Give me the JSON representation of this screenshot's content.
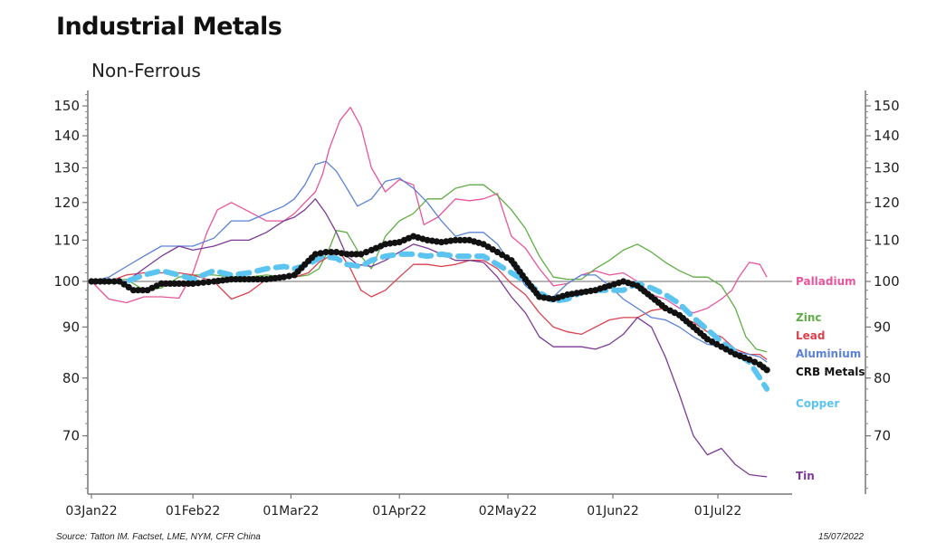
{
  "header": {
    "title": "Industrial Metals",
    "subtitle": "Non-Ferrous"
  },
  "footer": {
    "source": "Source: Tatton IM. Factset, LME, NYM, CFR China",
    "date": "15/07/2022"
  },
  "chart_data": {
    "type": "line",
    "title": "Industrial Metals",
    "subtitle": "Non-Ferrous",
    "xlabel": "",
    "ylabel": "",
    "y_scale": "log",
    "ylim": [
      61,
      156
    ],
    "reference_line": 100,
    "y_ticks": [
      70,
      80,
      90,
      100,
      110,
      120,
      130,
      140,
      150
    ],
    "y_tick_labels": [
      "70",
      "80",
      "90",
      "100",
      "110",
      "120",
      "130",
      "140",
      "150"
    ],
    "x_unit": "days since 03Jan22",
    "xlim": [
      0,
      203
    ],
    "x_ticks": [
      0,
      29,
      57,
      88,
      119,
      149,
      179
    ],
    "x_tick_labels": [
      "03Jan22",
      "01Feb22",
      "01Mar22",
      "01Apr22",
      "02May22",
      "01Jun22",
      "01Jul22"
    ],
    "legend_placement": "right (end labels)",
    "series": [
      {
        "name": "Palladium",
        "color": "#e8559c",
        "style": "solid",
        "x": [
          0,
          5,
          10,
          15,
          20,
          25,
          29,
          33,
          36,
          40,
          45,
          50,
          55,
          58,
          61,
          64,
          66,
          68,
          71,
          74,
          77,
          80,
          84,
          88,
          92,
          95,
          99,
          104,
          108,
          112,
          116,
          120,
          124,
          128,
          132,
          136,
          140,
          144,
          148,
          152,
          156,
          160,
          164,
          168,
          172,
          176,
          180,
          183,
          185,
          188,
          191,
          193
        ],
        "y": [
          100,
          96,
          95.2,
          96.5,
          96.5,
          96.2,
          102,
          112,
          118,
          120,
          117.5,
          115,
          115,
          117,
          120,
          123,
          128,
          136,
          145,
          149.5,
          143,
          130,
          123,
          126.5,
          125,
          114,
          116,
          121,
          120.5,
          121,
          122.5,
          111,
          108,
          103,
          99,
          99.5,
          101.5,
          102.5,
          101.5,
          102,
          100,
          97,
          96,
          94,
          93,
          94,
          96,
          98,
          101,
          104.5,
          104,
          101
        ]
      },
      {
        "name": "Zinc",
        "color": "#5fae44",
        "style": "solid",
        "x": [
          0,
          5,
          10,
          15,
          20,
          25,
          29,
          35,
          40,
          45,
          50,
          55,
          58,
          62,
          65,
          68,
          70,
          73,
          77,
          80,
          84,
          88,
          92,
          96,
          100,
          104,
          108,
          112,
          116,
          120,
          124,
          128,
          132,
          136,
          140,
          144,
          148,
          152,
          156,
          160,
          164,
          168,
          172,
          176,
          180,
          184,
          187,
          190,
          193
        ],
        "y": [
          100,
          100,
          100.5,
          98,
          98.5,
          101,
          101.5,
          101.5,
          101,
          101,
          101.5,
          101,
          101,
          101.5,
          103,
          108,
          112.5,
          112,
          106,
          103,
          111,
          115,
          117,
          121,
          121,
          124,
          125,
          125,
          122,
          118,
          113,
          106,
          101,
          100.5,
          100.5,
          103,
          105,
          107.5,
          109,
          107,
          104.5,
          102.5,
          101,
          101,
          99,
          94,
          88,
          85.5,
          85
        ]
      },
      {
        "name": "Lead",
        "color": "#d9414d",
        "style": "solid",
        "x": [
          0,
          5,
          10,
          15,
          20,
          25,
          29,
          35,
          40,
          45,
          50,
          55,
          58,
          62,
          65,
          68,
          71,
          74,
          77,
          80,
          84,
          88,
          92,
          96,
          100,
          104,
          108,
          112,
          116,
          120,
          124,
          128,
          132,
          136,
          140,
          144,
          148,
          152,
          156,
          160,
          164,
          168,
          172,
          176,
          180,
          184,
          188,
          191,
          193
        ],
        "y": [
          100,
          100,
          101.5,
          102,
          102,
          102,
          101.5,
          100,
          96,
          97.5,
          100.5,
          101,
          101,
          102,
          104.5,
          106,
          107,
          103,
          98,
          96.5,
          98,
          101,
          104,
          104,
          103.5,
          104,
          105,
          105,
          103,
          99.5,
          97,
          93,
          90,
          89,
          88.5,
          90,
          91.5,
          92,
          92,
          93.5,
          94,
          92,
          91,
          89,
          88,
          85.5,
          84.5,
          84.5,
          83.5
        ]
      },
      {
        "name": "Aluminium",
        "color": "#5b82d6",
        "style": "solid",
        "x": [
          0,
          5,
          10,
          15,
          20,
          25,
          29,
          35,
          40,
          45,
          50,
          55,
          58,
          61,
          64,
          67,
          70,
          73,
          76,
          80,
          84,
          88,
          92,
          96,
          100,
          104,
          108,
          112,
          116,
          120,
          124,
          128,
          132,
          136,
          140,
          144,
          148,
          152,
          156,
          160,
          164,
          168,
          172,
          176,
          180,
          184,
          188,
          191,
          193
        ],
        "y": [
          100,
          101,
          103.5,
          106,
          108.5,
          108.5,
          108.5,
          110.5,
          115,
          115,
          117,
          119,
          121,
          125,
          131,
          132,
          129,
          124,
          119,
          121,
          126,
          127,
          124,
          120,
          115,
          111,
          112,
          112,
          109,
          104,
          99,
          96.5,
          96.5,
          99.5,
          101.5,
          101.5,
          99,
          96,
          94,
          92,
          91.5,
          90,
          88,
          86.5,
          86,
          85,
          84.5,
          84,
          83
        ]
      },
      {
        "name": "Tin",
        "color": "#7b3a96",
        "style": "solid",
        "x": [
          0,
          5,
          10,
          15,
          20,
          25,
          29,
          35,
          40,
          45,
          50,
          55,
          58,
          61,
          64,
          67,
          70,
          73,
          76,
          80,
          84,
          88,
          92,
          96,
          100,
          104,
          108,
          112,
          116,
          120,
          124,
          128,
          132,
          136,
          140,
          144,
          148,
          152,
          156,
          160,
          164,
          168,
          172,
          176,
          180,
          184,
          188,
          191,
          193
        ],
        "y": [
          100,
          100,
          100,
          103,
          106,
          108.5,
          107.5,
          108.5,
          110,
          110,
          112,
          115,
          116,
          118,
          121,
          117,
          112,
          106,
          104,
          103.5,
          105,
          107,
          109,
          108,
          106.5,
          105,
          105,
          104.5,
          101,
          96.5,
          93,
          88,
          86,
          86,
          86,
          85.5,
          86.5,
          88.5,
          92,
          90,
          84,
          77,
          70,
          67,
          68,
          65.5,
          64,
          63.8,
          63.7
        ]
      },
      {
        "name": "CRB Metals",
        "color": "#111111",
        "style": "dots",
        "x": [
          0,
          5,
          8,
          12,
          16,
          20,
          25,
          29,
          35,
          40,
          45,
          50,
          55,
          58,
          61,
          64,
          67,
          70,
          73,
          77,
          80,
          84,
          88,
          92,
          96,
          100,
          104,
          108,
          112,
          116,
          120,
          124,
          128,
          132,
          136,
          140,
          144,
          148,
          152,
          156,
          160,
          164,
          168,
          172,
          176,
          180,
          184,
          188,
          191,
          193
        ],
        "y": [
          100,
          100,
          100,
          98,
          98,
          99.5,
          99.5,
          99.5,
          100,
          100.5,
          100.5,
          100.5,
          101,
          101.5,
          104,
          106.5,
          107,
          107,
          106.5,
          106.5,
          107.5,
          109,
          109.5,
          111,
          110,
          109.5,
          110,
          110,
          109,
          107,
          105,
          100.5,
          96.5,
          96,
          97,
          97.5,
          98,
          99,
          100,
          99,
          96.5,
          94,
          92.5,
          90,
          87.5,
          86,
          84.5,
          83.5,
          82.5,
          81.5
        ]
      },
      {
        "name": "Copper",
        "color": "#5bc4f1",
        "style": "dashed",
        "x": [
          0,
          5,
          10,
          15,
          20,
          25,
          29,
          35,
          40,
          45,
          50,
          55,
          58,
          62,
          66,
          70,
          73,
          77,
          80,
          84,
          88,
          92,
          96,
          100,
          104,
          108,
          112,
          116,
          120,
          124,
          128,
          132,
          136,
          140,
          144,
          148,
          152,
          156,
          160,
          164,
          168,
          172,
          176,
          180,
          184,
          188,
          191,
          193
        ],
        "y": [
          100,
          100,
          100,
          101.5,
          102.5,
          101.5,
          100.5,
          102.5,
          101.5,
          102,
          103,
          103.5,
          103,
          104,
          106,
          105.5,
          104,
          103.5,
          105,
          106,
          106.5,
          106.5,
          106,
          106.5,
          106,
          106,
          106,
          104,
          102,
          100,
          97.5,
          95.5,
          96,
          97.5,
          98,
          98,
          98,
          99.5,
          98.5,
          97,
          95,
          92,
          89.5,
          87,
          85,
          83,
          80,
          78
        ]
      }
    ]
  },
  "legend": {
    "items": [
      {
        "label": "Palladium",
        "color": "#e8559c"
      },
      {
        "label": "Zinc",
        "color": "#5fae44"
      },
      {
        "label": "Lead",
        "color": "#d9414d"
      },
      {
        "label": "Aluminium",
        "color": "#5b82d6"
      },
      {
        "label": "CRB Metals",
        "color": "#111111"
      },
      {
        "label": "Copper",
        "color": "#5bc4f1"
      },
      {
        "label": "Tin",
        "color": "#7b3a96"
      }
    ]
  }
}
